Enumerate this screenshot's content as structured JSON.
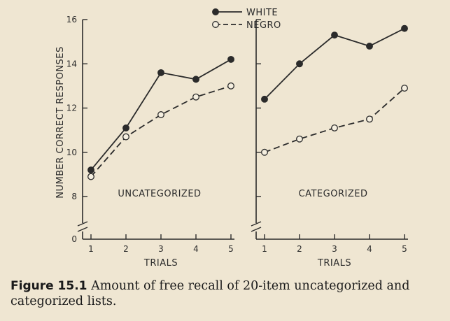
{
  "chart_data": [
    {
      "type": "line",
      "panel_label": "UNCATEGORIZED",
      "xlabel": "TRIALS",
      "ylabel": "NUMBER CORRECT RESPONSES",
      "x": [
        1,
        2,
        3,
        4,
        5
      ],
      "ylim": [
        8,
        16
      ],
      "y_ticks": [
        0,
        8,
        10,
        12,
        14,
        16
      ],
      "axis_break": true,
      "series": [
        {
          "name": "WHITE",
          "values": [
            9.2,
            11.1,
            13.6,
            13.3,
            14.2
          ],
          "marker": "filled-circle",
          "line": "solid"
        },
        {
          "name": "NEGRO",
          "values": [
            8.9,
            10.7,
            11.7,
            12.5,
            13.0
          ],
          "marker": "open-circle",
          "line": "dashed"
        }
      ]
    },
    {
      "type": "line",
      "panel_label": "CATEGORIZED",
      "xlabel": "TRIALS",
      "ylabel": "",
      "x": [
        1,
        2,
        3,
        4,
        5
      ],
      "ylim": [
        8,
        16
      ],
      "axis_break": true,
      "series": [
        {
          "name": "WHITE",
          "values": [
            12.4,
            14.0,
            15.3,
            14.8,
            15.6
          ],
          "marker": "filled-circle",
          "line": "solid"
        },
        {
          "name": "NEGRO",
          "values": [
            10.0,
            10.6,
            11.1,
            11.5,
            12.9
          ],
          "marker": "open-circle",
          "line": "dashed"
        }
      ]
    }
  ],
  "legend": {
    "placement": "top-center",
    "items": [
      "WHITE",
      "NEGRO"
    ]
  },
  "caption": {
    "label": "Figure 15.1",
    "text": "Amount of free recall of 20-item uncategorized and categorized lists."
  }
}
